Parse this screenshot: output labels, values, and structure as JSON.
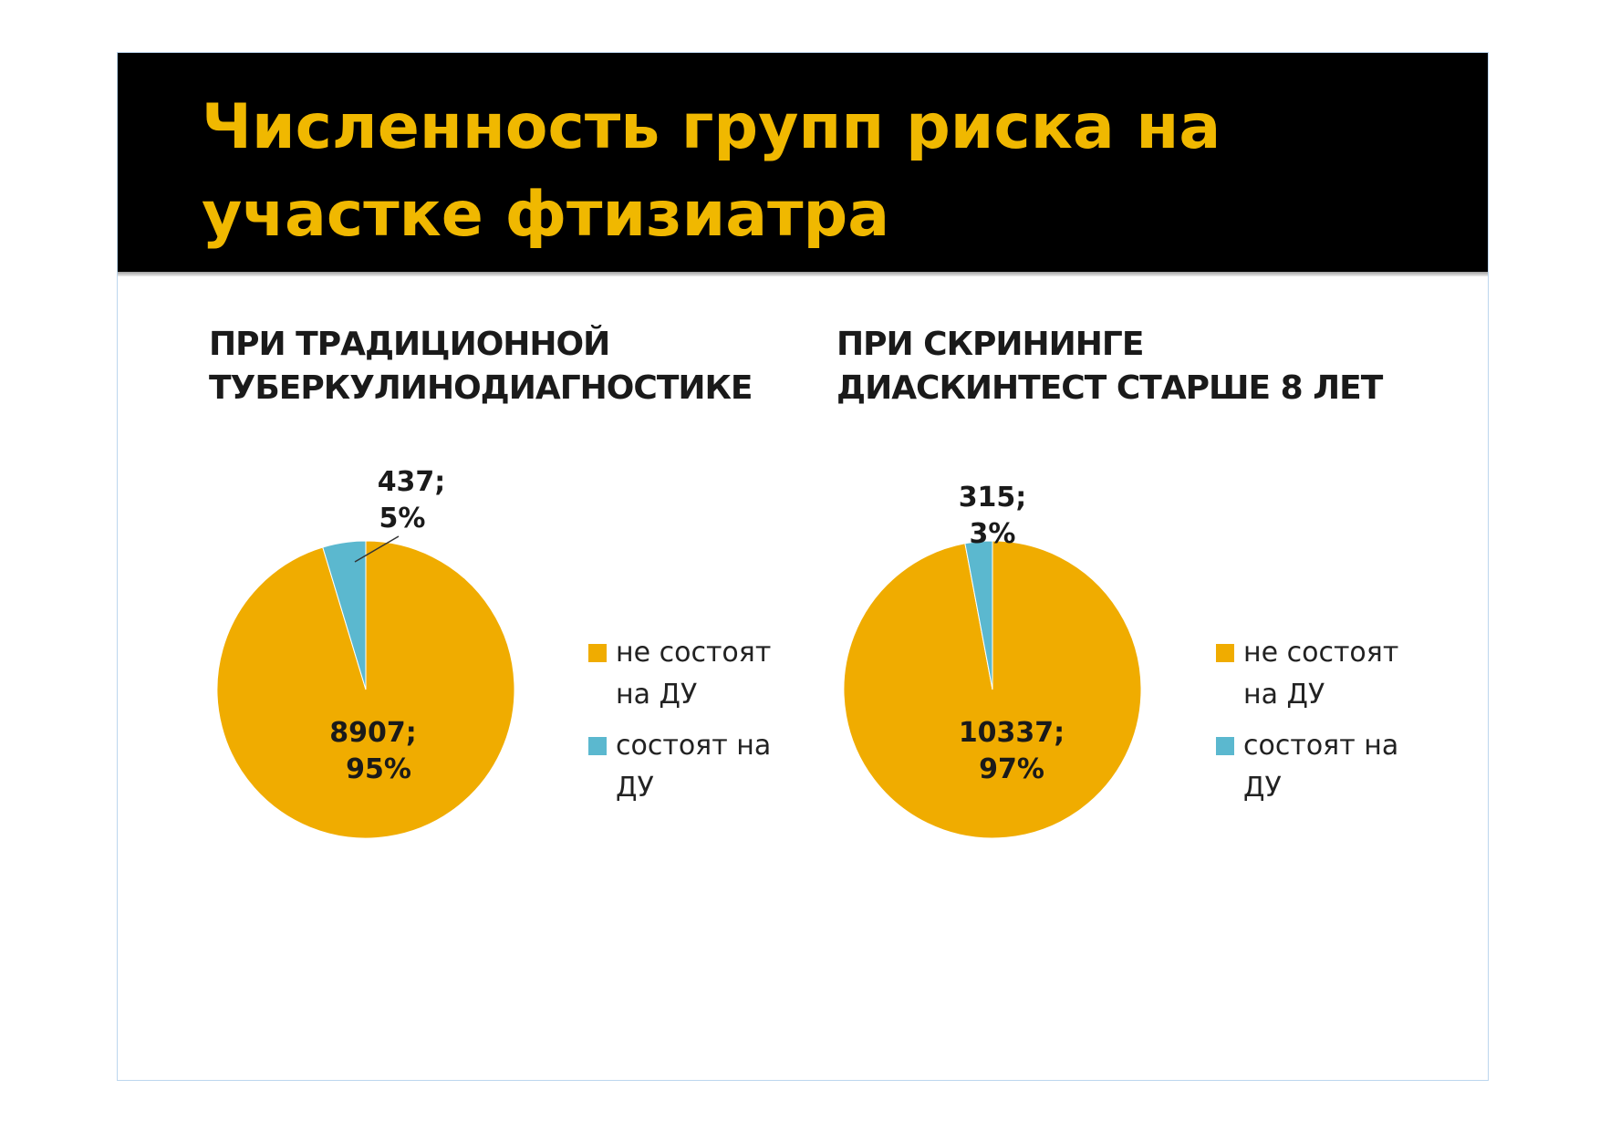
{
  "slide": {
    "title_lines": [
      "Численность групп риска на",
      "участке фтизиатра"
    ]
  },
  "colors": {
    "title": "#f0b800",
    "series_orange": "#f0ac00",
    "series_blue": "#5bb8cf"
  },
  "chart_data": [
    {
      "type": "pie",
      "title_lines": [
        "ПРИ ТРАДИЦИОННОЙ",
        "ТУБЕРКУЛИНОДИАГНОСТИКЕ"
      ],
      "categories": [
        "не состоят на ДУ",
        "состоят на ДУ"
      ],
      "values": [
        8907,
        437
      ],
      "percents": [
        95,
        5
      ],
      "data_labels": [
        [
          "8907;",
          "95%"
        ],
        [
          "437;",
          "5%"
        ]
      ],
      "colors": [
        "#f0ac00",
        "#5bb8cf"
      ],
      "legend_position": "right"
    },
    {
      "type": "pie",
      "title_lines": [
        "ПРИ СКРИНИНГЕ",
        "ДИАСКИНТЕСТ СТАРШЕ 8 ЛЕТ"
      ],
      "categories": [
        "не состоят на ДУ",
        "состоят на ДУ"
      ],
      "values": [
        10337,
        315
      ],
      "percents": [
        97,
        3
      ],
      "data_labels": [
        [
          "10337;",
          "97%"
        ],
        [
          "315;",
          "3%"
        ]
      ],
      "colors": [
        "#f0ac00",
        "#5bb8cf"
      ],
      "legend_position": "right"
    }
  ]
}
